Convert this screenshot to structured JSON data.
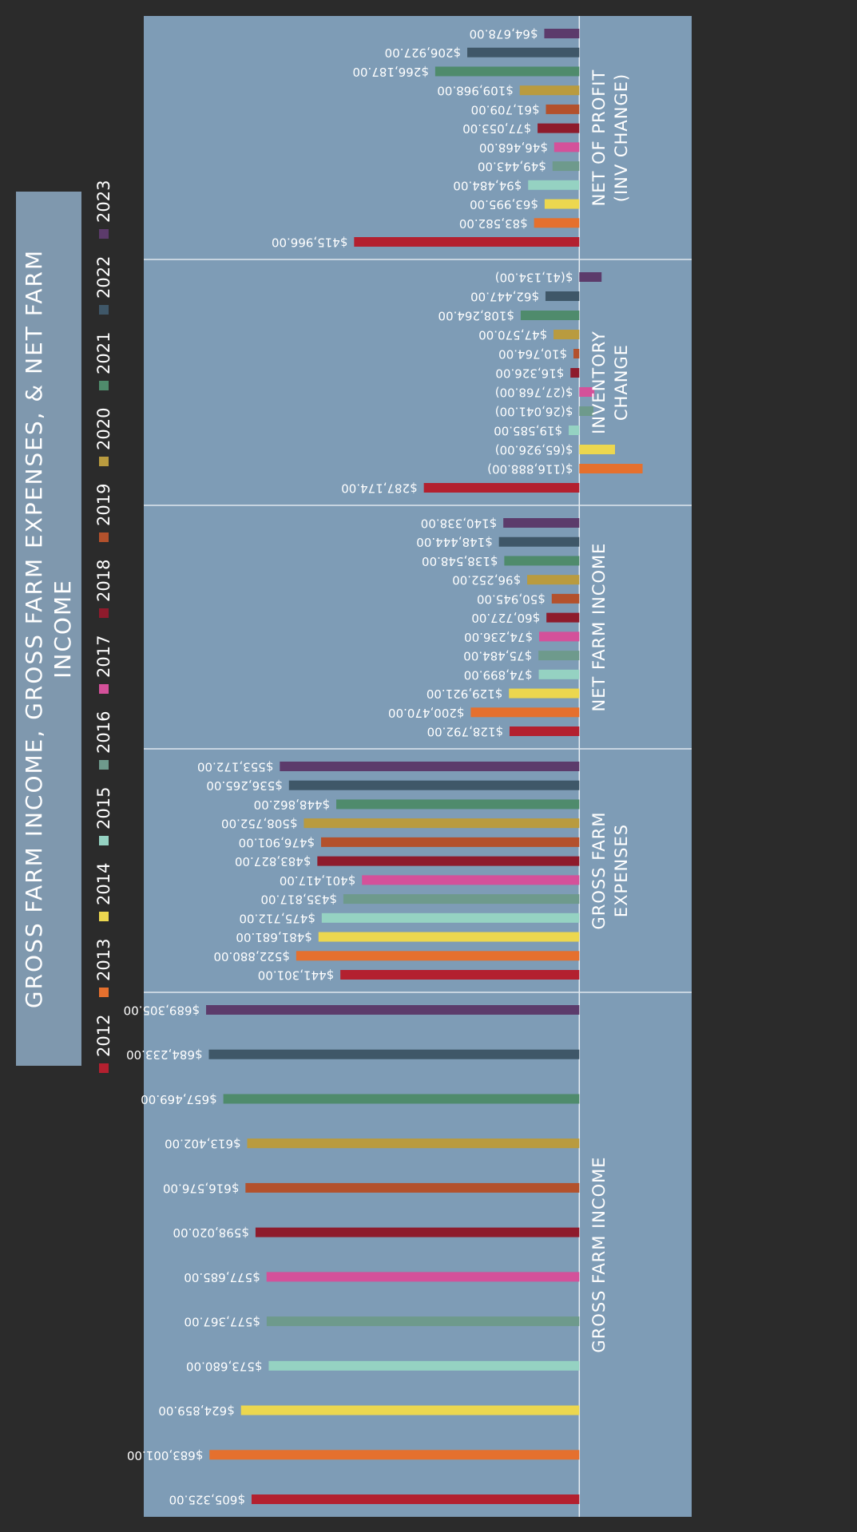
{
  "chart_data": {
    "type": "bar",
    "title": "GROSS FARM INCOME, GROSS FARM EXPENSES, & NET FARM INCOME",
    "categories": [
      "GROSS FARM INCOME",
      "GROSS FARM EXPENSES",
      "NET FARM INCOME",
      "INVENTORY CHANGE",
      "NET OF PROFIT (INV CHANGE)"
    ],
    "ylim": [
      -150000,
      800000
    ],
    "series": [
      {
        "name": "2012",
        "color": "#b3202f",
        "values": [
          605325,
          441301,
          128792,
          287174,
          415966
        ],
        "value_labels": [
          "$605,325.00",
          "$441,301.00",
          "$128,792.00",
          "$287,174.00",
          "$415,966.00"
        ]
      },
      {
        "name": "2013",
        "color": "#e5702e",
        "values": [
          683001,
          522880,
          200470,
          -116888,
          83582
        ],
        "value_labels": [
          "$683,001.00",
          "$522,880.00",
          "$200,470.00",
          "$(116,888.00)",
          "$83,582.00"
        ]
      },
      {
        "name": "2014",
        "color": "#ecd74f",
        "values": [
          624859,
          481681,
          129921,
          -65926,
          63995
        ],
        "value_labels": [
          "$624,859.00",
          "$481,681.00",
          "$129,921.00",
          "$(65,926.00)",
          "$63,995.00"
        ]
      },
      {
        "name": "2015",
        "color": "#95d2c2",
        "values": [
          573680,
          475712,
          74899,
          19585,
          94484
        ],
        "value_labels": [
          "$573,680.00",
          "$475,712.00",
          "$74,899.00",
          "$19,585.00",
          "$94,484.00"
        ]
      },
      {
        "name": "2016",
        "color": "#6e9a8c",
        "values": [
          577367,
          435817,
          75484,
          -26041,
          49443
        ],
        "value_labels": [
          "$577,367.00",
          "$435,817.00",
          "$75,484.00",
          "$(26,041.00)",
          "$49,443.00"
        ]
      },
      {
        "name": "2017",
        "color": "#d4519a",
        "values": [
          577685,
          401417,
          74236,
          -27768,
          46468
        ],
        "value_labels": [
          "$577,685.00",
          "$401,417.00",
          "$74,236.00",
          "$(27,768.00)",
          "$46,468.00"
        ]
      },
      {
        "name": "2018",
        "color": "#8e1b2c",
        "values": [
          598020,
          483827,
          60727,
          16326,
          77053
        ],
        "value_labels": [
          "$598,020.00",
          "$483,827.00",
          "$60,727.00",
          "$16,326.00",
          "$77,053.00"
        ]
      },
      {
        "name": "2019",
        "color": "#b3512c",
        "values": [
          616576,
          476901,
          50945,
          10764,
          61709
        ],
        "value_labels": [
          "$616,576.00",
          "$476,901.00",
          "$50,945.00",
          "$10,764.00",
          "$61,709.00"
        ]
      },
      {
        "name": "2020",
        "color": "#b99b3f",
        "values": [
          613402,
          508752,
          96252,
          47570,
          109968
        ],
        "value_labels": [
          "$613,402.00",
          "$508,752.00",
          "$96,252.00",
          "$47,570.00",
          "$109,968.00"
        ]
      },
      {
        "name": "2021",
        "color": "#4f8b6c",
        "values": [
          657469,
          448862,
          138548,
          108264,
          266187
        ],
        "value_labels": [
          "$657,469.00",
          "$448,862.00",
          "$138,548.00",
          "$108,264.00",
          "$266,187.00"
        ]
      },
      {
        "name": "2022",
        "color": "#3f5768",
        "values": [
          684233,
          536265,
          148444,
          62447,
          206927
        ],
        "value_labels": [
          "$684,233.00",
          "$536,265.00",
          "$148,444.00",
          "$62,447.00",
          "$206,927.00"
        ]
      },
      {
        "name": "2023",
        "color": "#5c3b6b",
        "values": [
          689305,
          553172,
          140338,
          -41134,
          64678
        ],
        "value_labels": [
          "$689,305.00",
          "$553,172.00",
          "$140,338.00",
          "$(41,134.00)",
          "$64,678.00"
        ]
      }
    ]
  }
}
